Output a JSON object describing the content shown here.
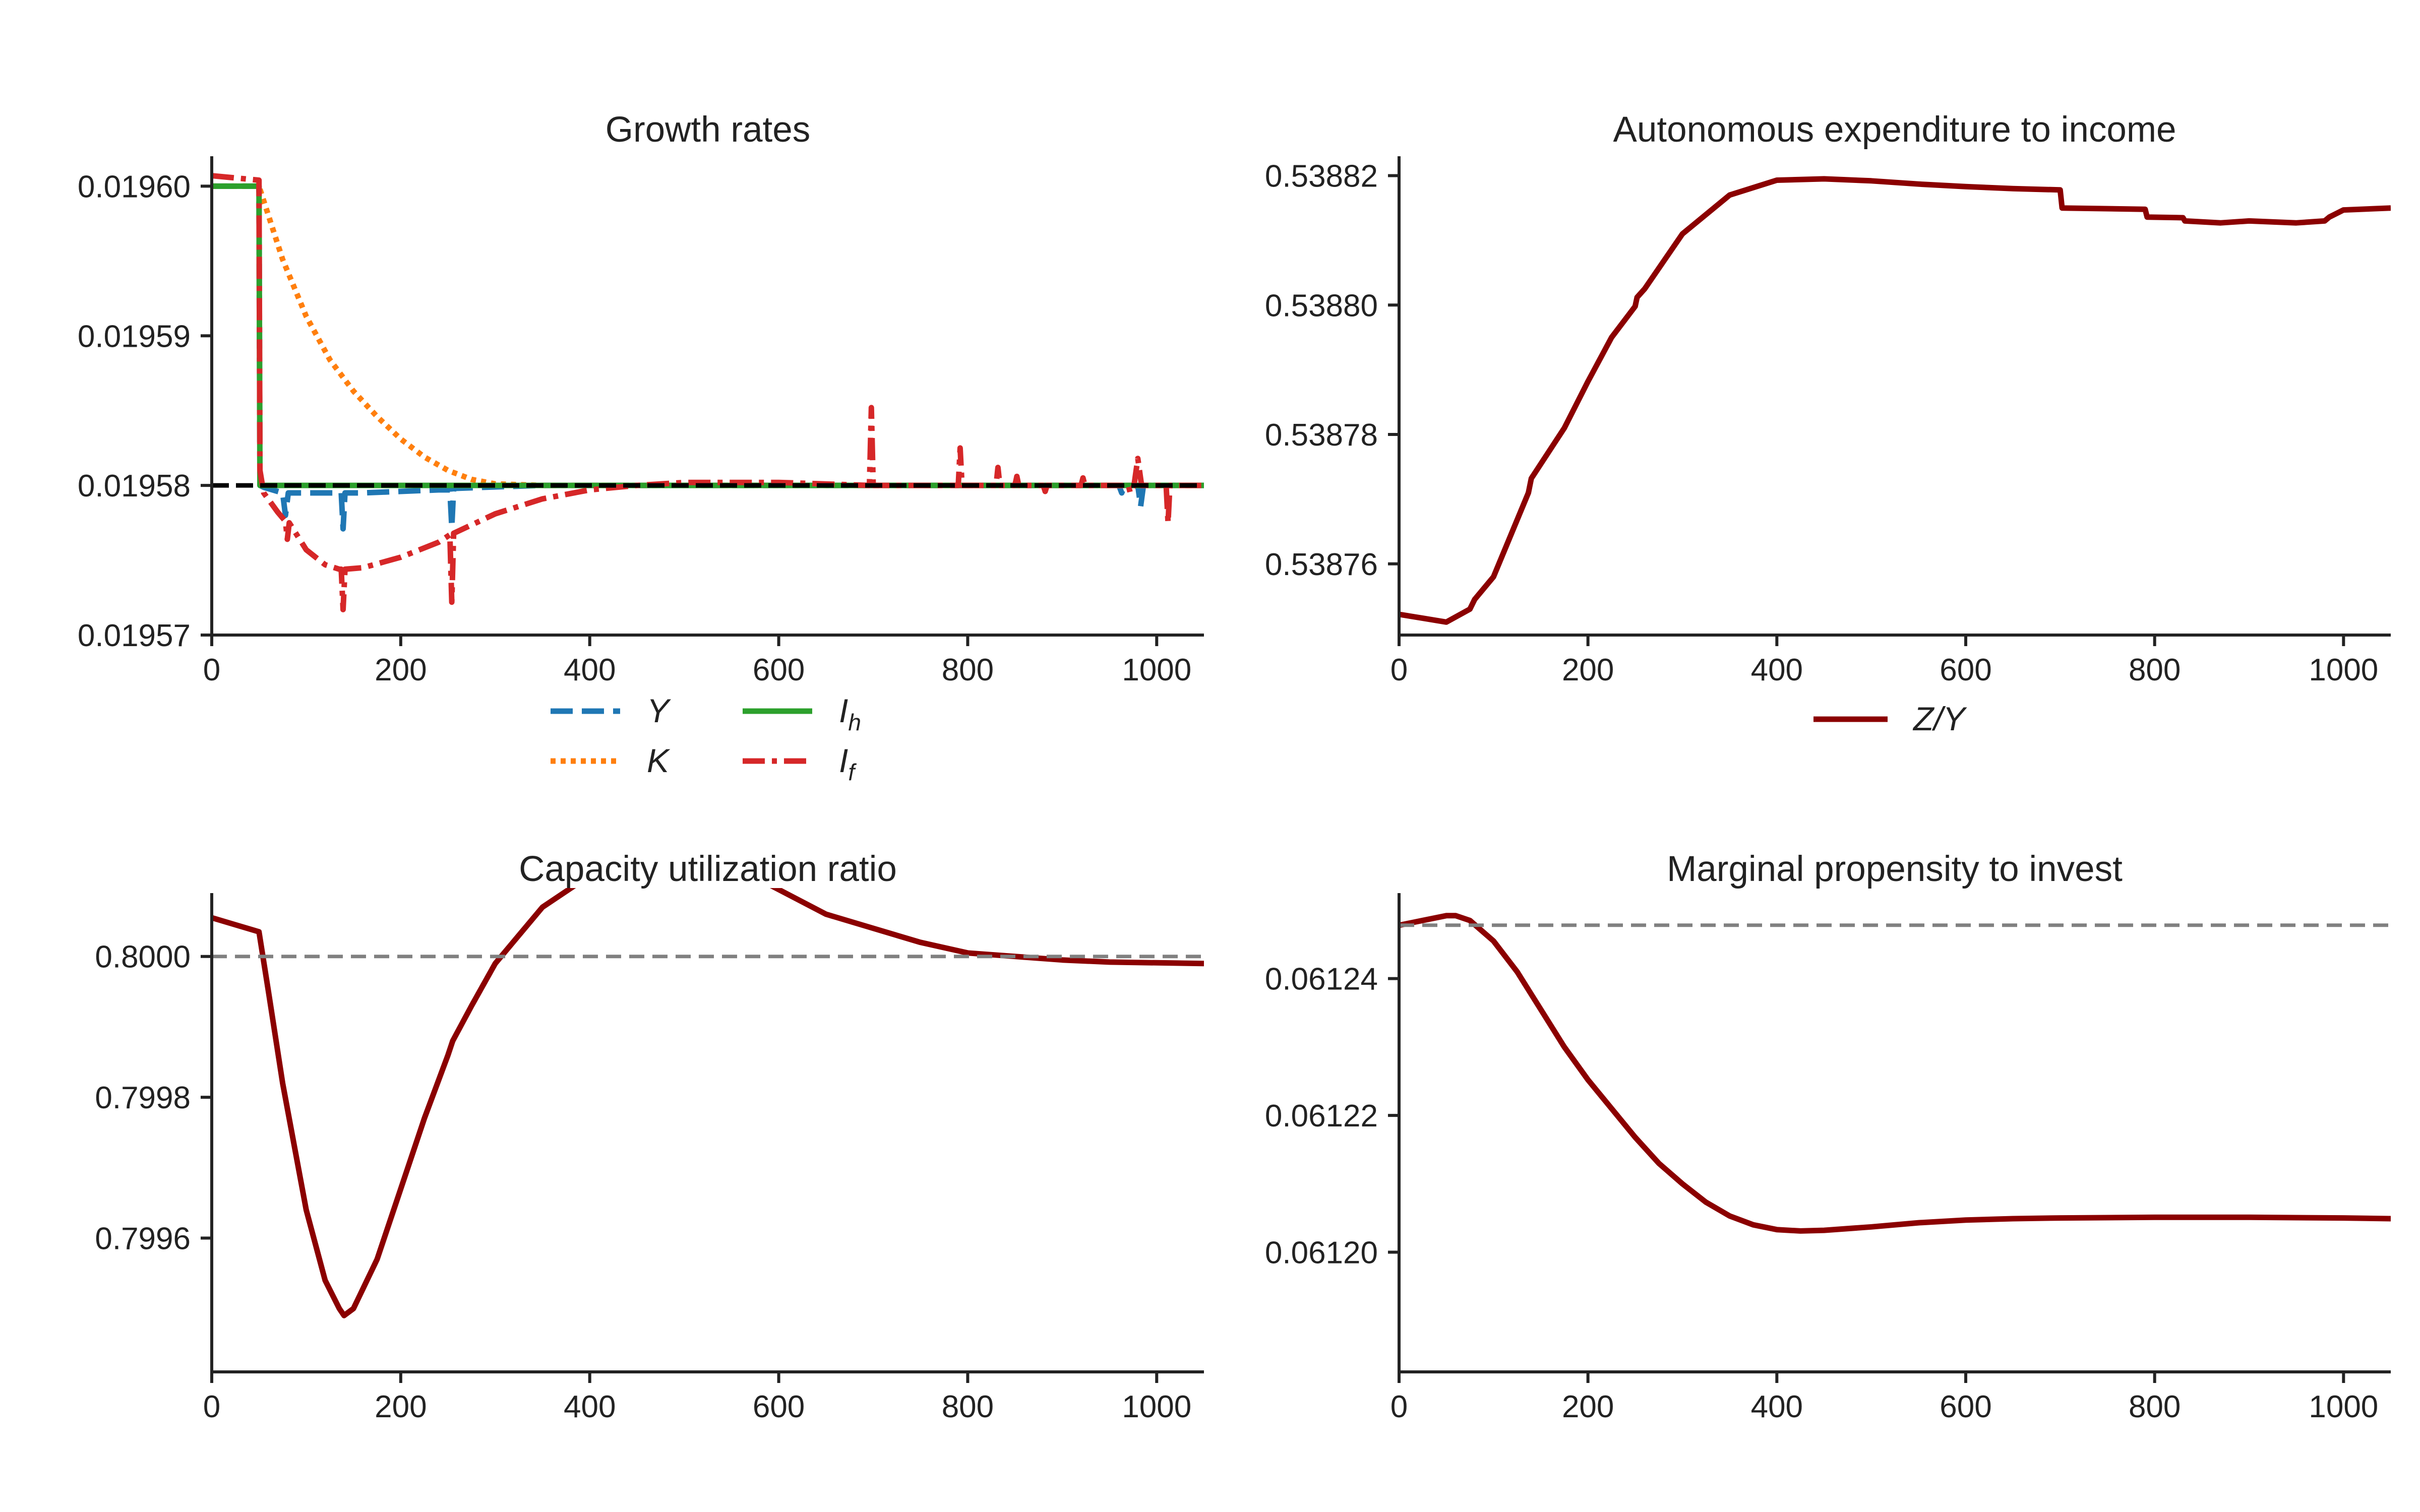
{
  "chart_data": [
    {
      "id": "growth",
      "type": "line",
      "title": "Growth rates",
      "xlim": [
        0,
        1050
      ],
      "ylim": [
        0.01957,
        0.019602
      ],
      "xticks": [
        0,
        200,
        400,
        600,
        800,
        1000
      ],
      "xtick_labels": [
        "0",
        "200",
        "400",
        "600",
        "800",
        "1000"
      ],
      "yticks": [
        0.01957,
        0.01958,
        0.01959,
        0.0196
      ],
      "ytick_labels": [
        "0.01957",
        "0.01958",
        "0.01959",
        "0.01960"
      ],
      "grid": false,
      "legend_position": "bottom-center",
      "reference_lines": [
        {
          "y": 0.01958,
          "color": "#000000",
          "style": "dashed"
        }
      ],
      "series": [
        {
          "name": "Y",
          "color": "#1f77b4",
          "style": "dashed",
          "points": [
            [
              0,
              0.0196
            ],
            [
              50,
              0.0196
            ],
            [
              51,
              0.01958
            ],
            [
              55,
              0.019579875
            ],
            [
              75,
              0.0195795
            ],
            [
              78,
              0.019578
            ],
            [
              81,
              0.0195795
            ],
            [
              100,
              0.0195795
            ],
            [
              137,
              0.0195795
            ],
            [
              139,
              0.0195771
            ],
            [
              141,
              0.0195795
            ],
            [
              160,
              0.0195795
            ],
            [
              200,
              0.0195796
            ],
            [
              240,
              0.0195797
            ],
            [
              252,
              0.0195797
            ],
            [
              254,
              0.0195772
            ],
            [
              256,
              0.0195798
            ],
            [
              300,
              0.0195799
            ],
            [
              350,
              0.01958
            ],
            [
              600,
              0.01958
            ],
            [
              900,
              0.01958
            ],
            [
              960,
              0.01958
            ],
            [
              963,
              0.0195795
            ],
            [
              966,
              0.01958
            ],
            [
              980,
              0.01958
            ],
            [
              983,
              0.0195786
            ],
            [
              986,
              0.01958
            ],
            [
              1050,
              0.01958
            ]
          ]
        },
        {
          "name": "K",
          "color": "#ff7f0e",
          "style": "dotted",
          "points": [
            [
              0,
              0.0196
            ],
            [
              50,
              0.0196
            ],
            [
              75,
              0.0195951
            ],
            [
              100,
              0.0195913
            ],
            [
              125,
              0.0195884
            ],
            [
              150,
              0.0195863
            ],
            [
              175,
              0.0195846
            ],
            [
              200,
              0.0195831
            ],
            [
              225,
              0.0195819
            ],
            [
              250,
              0.019581
            ],
            [
              275,
              0.0195804
            ],
            [
              300,
              0.0195801
            ],
            [
              350,
              0.01958
            ],
            [
              1050,
              0.01958
            ]
          ]
        },
        {
          "name": "I_h",
          "label_main": "I",
          "label_sub": "h",
          "color": "#2ca02c",
          "style": "solid",
          "points": [
            [
              0,
              0.0196
            ],
            [
              50,
              0.0196
            ],
            [
              51,
              0.01958
            ],
            [
              1050,
              0.01958
            ]
          ]
        },
        {
          "name": "I_f",
          "label_main": "I",
          "label_sub": "f",
          "color": "#d62728",
          "style": "dashdot",
          "points": [
            [
              0,
              0.0196007
            ],
            [
              50,
              0.0196004
            ],
            [
              51,
              0.019581
            ],
            [
              55,
              0.0195795
            ],
            [
              70,
              0.0195782
            ],
            [
              78,
              0.0195776
            ],
            [
              80,
              0.0195764
            ],
            [
              82,
              0.0195775
            ],
            [
              100,
              0.0195757
            ],
            [
              120,
              0.0195747
            ],
            [
              135,
              0.0195744
            ],
            [
              137,
              0.0195744
            ],
            [
              139,
              0.0195717
            ],
            [
              141,
              0.0195744
            ],
            [
              160,
              0.0195745
            ],
            [
              200,
              0.0195752
            ],
            [
              240,
              0.0195762
            ],
            [
              252,
              0.0195767
            ],
            [
              254,
              0.0195722
            ],
            [
              256,
              0.0195768
            ],
            [
              300,
              0.0195781
            ],
            [
              350,
              0.0195791
            ],
            [
              400,
              0.0195797
            ],
            [
              450,
              0.01958
            ],
            [
              500,
              0.0195802
            ],
            [
              600,
              0.0195802
            ],
            [
              696,
              0.01958
            ],
            [
              698,
              0.0195852
            ],
            [
              700,
              0.01958
            ],
            [
              790,
              0.01958
            ],
            [
              792,
              0.0195825
            ],
            [
              794,
              0.01958
            ],
            [
              830,
              0.01958
            ],
            [
              832,
              0.0195812
            ],
            [
              834,
              0.01958
            ],
            [
              850,
              0.01958
            ],
            [
              852,
              0.0195806
            ],
            [
              854,
              0.01958
            ],
            [
              880,
              0.01958
            ],
            [
              882,
              0.0195796
            ],
            [
              884,
              0.01958
            ],
            [
              920,
              0.01958
            ],
            [
              922,
              0.0195805
            ],
            [
              924,
              0.01958
            ],
            [
              970,
              0.01958
            ],
            [
              972,
              0.0195795
            ],
            [
              976,
              0.01958
            ],
            [
              980,
              0.0195818
            ],
            [
              984,
              0.01958
            ],
            [
              1010,
              0.01958
            ],
            [
              1012,
              0.0195775
            ],
            [
              1014,
              0.01958
            ],
            [
              1050,
              0.01958
            ]
          ]
        }
      ]
    },
    {
      "id": "autonomous",
      "type": "line",
      "title": "Autonomous expenditure to income",
      "xlim": [
        0,
        1050
      ],
      "ylim": [
        0.538749,
        0.538823
      ],
      "xticks": [
        0,
        200,
        400,
        600,
        800,
        1000
      ],
      "xtick_labels": [
        "0",
        "200",
        "400",
        "600",
        "800",
        "1000"
      ],
      "yticks": [
        0.53876,
        0.53878,
        0.5388,
        0.53882
      ],
      "ytick_labels": [
        "0.53876",
        "0.53878",
        "0.53880",
        "0.53882"
      ],
      "grid": false,
      "legend_position": "bottom-center",
      "series": [
        {
          "name": "Z/Y",
          "label_main": "Z/Y",
          "color": "#8b0000",
          "style": "solid",
          "points": [
            [
              0,
              0.5387522
            ],
            [
              25,
              0.5387516
            ],
            [
              50,
              0.538751
            ],
            [
              75,
              0.538753
            ],
            [
              80,
              0.5387545
            ],
            [
              100,
              0.538758
            ],
            [
              137,
              0.538771
            ],
            [
              140,
              0.5387732
            ],
            [
              175,
              0.538781
            ],
            [
              200,
              0.5387882
            ],
            [
              225,
              0.538795
            ],
            [
              250,
              0.5387998
            ],
            [
              252,
              0.5388012
            ],
            [
              260,
              0.5388025
            ],
            [
              300,
              0.538811
            ],
            [
              350,
              0.538817
            ],
            [
              400,
              0.5388193
            ],
            [
              450,
              0.5388195
            ],
            [
              500,
              0.5388192
            ],
            [
              550,
              0.5388187
            ],
            [
              600,
              0.5388183
            ],
            [
              650,
              0.538818
            ],
            [
              700,
              0.5388178
            ],
            [
              702,
              0.538815
            ],
            [
              790,
              0.5388148
            ],
            [
              792,
              0.5388136
            ],
            [
              830,
              0.5388135
            ],
            [
              832,
              0.538813
            ],
            [
              870,
              0.5388127
            ],
            [
              900,
              0.538813
            ],
            [
              950,
              0.5388127
            ],
            [
              980,
              0.538813
            ],
            [
              985,
              0.5388136
            ],
            [
              1000,
              0.5388147
            ],
            [
              1050,
              0.538815
            ]
          ]
        }
      ]
    },
    {
      "id": "capacity",
      "type": "line",
      "title": "Capacity utilization ratio",
      "xlim": [
        0,
        1050
      ],
      "ylim": [
        0.79941,
        0.80009
      ],
      "xticks": [
        0,
        200,
        400,
        600,
        800,
        1000
      ],
      "xtick_labels": [
        "0",
        "200",
        "400",
        "600",
        "800",
        "1000"
      ],
      "yticks": [
        0.7996,
        0.7998,
        0.8
      ],
      "ytick_labels": [
        "0.7996",
        "0.7998",
        "0.8000"
      ],
      "grid": false,
      "reference_lines": [
        {
          "y": 0.8,
          "color": "#808080",
          "style": "dashed"
        }
      ],
      "series": [
        {
          "name": "capacity utilization",
          "color": "#8b0000",
          "style": "solid",
          "points": [
            [
              0,
              0.800055
            ],
            [
              25,
              0.800045
            ],
            [
              50,
              0.800035
            ],
            [
              60,
              0.79995
            ],
            [
              75,
              0.79982
            ],
            [
              100,
              0.79964
            ],
            [
              120,
              0.79954
            ],
            [
              135,
              0.7995
            ],
            [
              140,
              0.79949
            ],
            [
              150,
              0.7995
            ],
            [
              175,
              0.79957
            ],
            [
              200,
              0.79967
            ],
            [
              225,
              0.79977
            ],
            [
              250,
              0.79986
            ],
            [
              255,
              0.79988
            ],
            [
              275,
              0.79993
            ],
            [
              300,
              0.79999
            ],
            [
              350,
              0.80007
            ],
            [
              400,
              0.800115
            ],
            [
              450,
              0.800135
            ],
            [
              500,
              0.80015
            ],
            [
              550,
              0.80013
            ],
            [
              600,
              0.800095
            ],
            [
              650,
              0.80006
            ],
            [
              700,
              0.80004
            ],
            [
              750,
              0.80002
            ],
            [
              800,
              0.800005
            ],
            [
              850,
              0.8
            ],
            [
              900,
              0.799995
            ],
            [
              950,
              0.799992
            ],
            [
              1050,
              0.79999
            ]
          ]
        }
      ]
    },
    {
      "id": "mpi",
      "type": "line",
      "title": "Marginal propensity to invest",
      "xlim": [
        0,
        1050
      ],
      "ylim": [
        0.0611825,
        0.0612525
      ],
      "xticks": [
        0,
        200,
        400,
        600,
        800,
        1000
      ],
      "xtick_labels": [
        "0",
        "200",
        "400",
        "600",
        "800",
        "1000"
      ],
      "yticks": [
        0.0612,
        0.06122,
        0.06124
      ],
      "ytick_labels": [
        "0.06120",
        "0.06122",
        "0.06124"
      ],
      "grid": false,
      "reference_lines": [
        {
          "y": 0.0612478,
          "color": "#808080",
          "style": "dashed"
        }
      ],
      "series": [
        {
          "name": "marginal propensity to invest",
          "color": "#8b0000",
          "style": "solid",
          "points": [
            [
              0,
              0.0612478
            ],
            [
              25,
              0.0612485
            ],
            [
              50,
              0.0612492
            ],
            [
              60,
              0.0612492
            ],
            [
              75,
              0.0612485
            ],
            [
              100,
              0.0612455
            ],
            [
              125,
              0.061241
            ],
            [
              150,
              0.0612355
            ],
            [
              175,
              0.06123
            ],
            [
              200,
              0.0612252
            ],
            [
              225,
              0.061221
            ],
            [
              250,
              0.0612168
            ],
            [
              275,
              0.061213
            ],
            [
              300,
              0.06121
            ],
            [
              325,
              0.0612073
            ],
            [
              350,
              0.0612053
            ],
            [
              375,
              0.061204
            ],
            [
              400,
              0.0612033
            ],
            [
              425,
              0.0612031
            ],
            [
              450,
              0.0612032
            ],
            [
              500,
              0.0612037
            ],
            [
              550,
              0.0612043
            ],
            [
              600,
              0.0612047
            ],
            [
              650,
              0.0612049
            ],
            [
              700,
              0.061205
            ],
            [
              800,
              0.0612051
            ],
            [
              900,
              0.0612051
            ],
            [
              1000,
              0.061205
            ],
            [
              1050,
              0.0612049
            ]
          ]
        }
      ]
    }
  ]
}
